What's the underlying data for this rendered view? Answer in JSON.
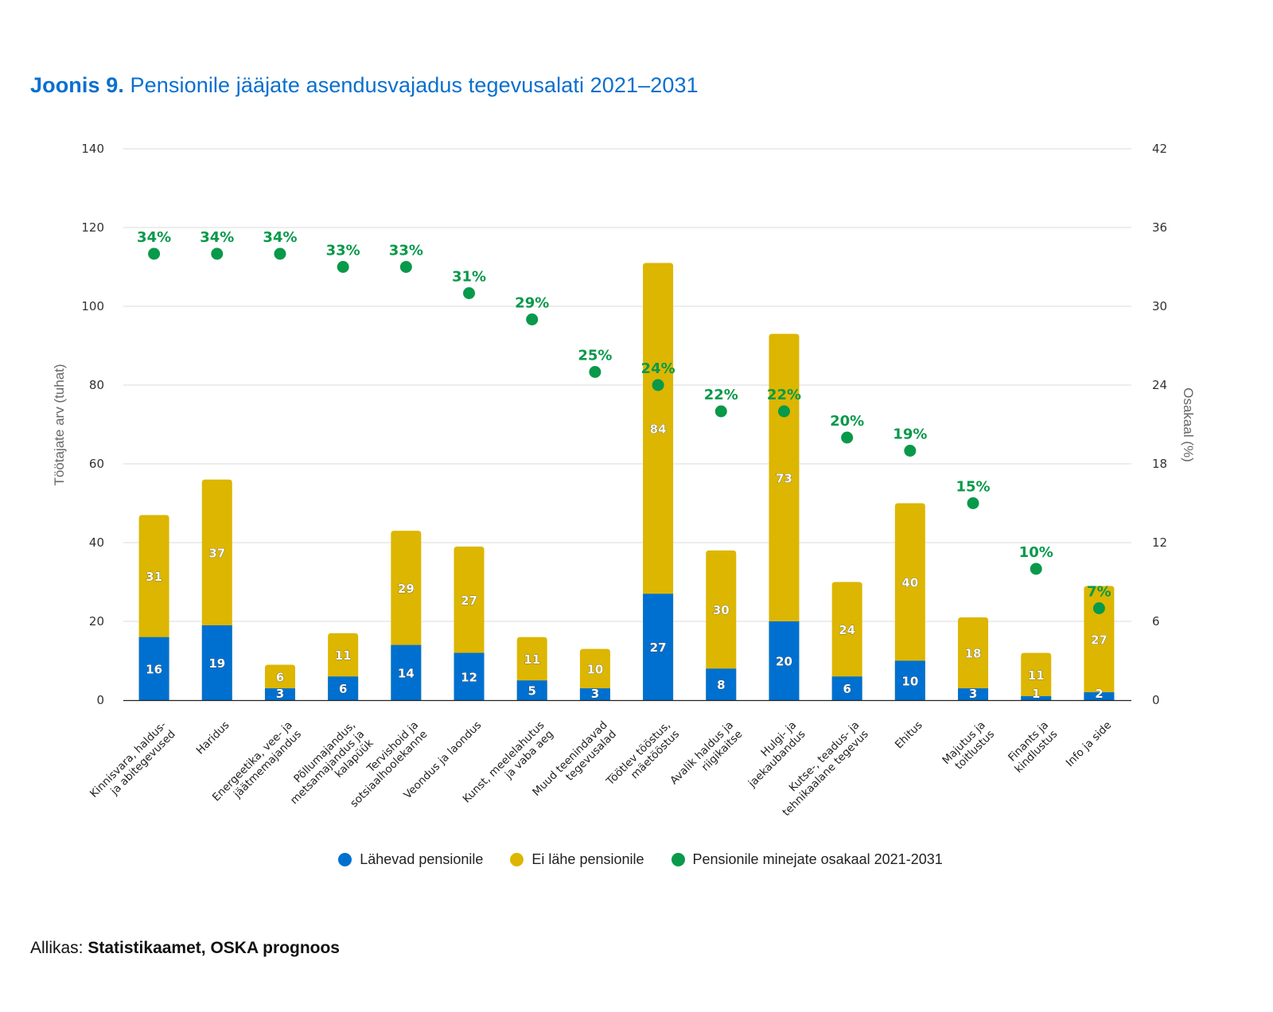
{
  "title": {
    "lead": "Joonis 9.",
    "text": "Pensionile jääjate asendusvajadus tegevusalati 2021–2031"
  },
  "source": {
    "prefix": "Allikas:",
    "text": "Statistikaamet, OSKA prognoos"
  },
  "colors": {
    "retiring": "#0070d0",
    "not_retiring": "#dcb600",
    "share": "#08994a",
    "title": "#0a6fcf"
  },
  "chart_data": {
    "type": "bar",
    "subtype": "stacked-bar-with-scatter-secondary-axis",
    "title": "Pensionile jääjate asendusvajadus tegevusalati 2021–2031",
    "ylabel": "Töötajate arv (tuhat)",
    "y2label": "Osakaal (%)",
    "ylim": [
      0,
      140
    ],
    "y2lim": [
      0,
      42
    ],
    "yticks": [
      0,
      20,
      40,
      60,
      80,
      100,
      120,
      140
    ],
    "y2ticks": [
      0,
      6,
      12,
      18,
      24,
      30,
      36,
      42
    ],
    "grid": true,
    "legend_position": "bottom",
    "categories": [
      "Kinnisvara, haldus- ja abitegevused",
      "Haridus",
      "Energeetika, vee- ja jäätmemajandus",
      "Põllumajandus, metsamajandus ja kalapüük",
      "Tervishoid ja sotsiaalhoolekanne",
      "Veondus ja laondus",
      "Kunst, meelelahutus ja vaba aeg",
      "Muud teenindavad tegevusalad",
      "Töötlev tööstus, mäetööstus",
      "Avalik haldus ja riigikaitse",
      "Hulgi- ja jaekaubandus",
      "Kutse-, teadus- ja tehnikaalane tegevus",
      "Ehitus",
      "Majutus ja toitlustus",
      "Finants ja kindlustus",
      "Info ja side"
    ],
    "category_lines": [
      [
        "Kinnisvara, haldus-",
        "ja abitegevused"
      ],
      [
        "Haridus"
      ],
      [
        "Energeetika, vee- ja",
        "jäätmemajandus"
      ],
      [
        "Põllumajandus,",
        "metsamajandus ja",
        "kalapüük"
      ],
      [
        "Tervishoid ja",
        "sotsiaalhoolekanne"
      ],
      [
        "Veondus ja laondus"
      ],
      [
        "Kunst, meelelahutus",
        "ja vaba aeg"
      ],
      [
        "Muud teenindavad",
        "tegevusalad"
      ],
      [
        "Töötlev tööstus,",
        "mäetööstus"
      ],
      [
        "Avalik haldus ja",
        "riigikaitse"
      ],
      [
        "Hulgi- ja",
        "jaekaubandus"
      ],
      [
        "Kutse-, teadus- ja",
        "tehnikaalane tegevus"
      ],
      [
        "Ehitus"
      ],
      [
        "Majutus ja",
        "toitlustus"
      ],
      [
        "Finants ja",
        "kindlustus"
      ],
      [
        "Info ja side"
      ]
    ],
    "series": [
      {
        "name": "Lähevad pensionile",
        "type": "bar",
        "axis": "left",
        "values": [
          16,
          19,
          3,
          6,
          14,
          12,
          5,
          3,
          27,
          8,
          20,
          6,
          10,
          3,
          1,
          2
        ]
      },
      {
        "name": "Ei lähe pensionile",
        "type": "bar",
        "axis": "left",
        "values": [
          31,
          37,
          6,
          11,
          29,
          27,
          11,
          10,
          84,
          30,
          73,
          24,
          40,
          18,
          11,
          27
        ]
      },
      {
        "name": "Pensionile minejate osakaal 2021-2031",
        "type": "scatter",
        "axis": "right",
        "values": [
          34,
          34,
          34,
          33,
          33,
          31,
          29,
          25,
          24,
          22,
          22,
          20,
          19,
          15,
          10,
          7
        ],
        "labels": [
          "34%",
          "34%",
          "34%",
          "33%",
          "33%",
          "31%",
          "29%",
          "25%",
          "24%",
          "22%",
          "22%",
          "20%",
          "19%",
          "15%",
          "10%",
          "7%"
        ]
      }
    ]
  }
}
